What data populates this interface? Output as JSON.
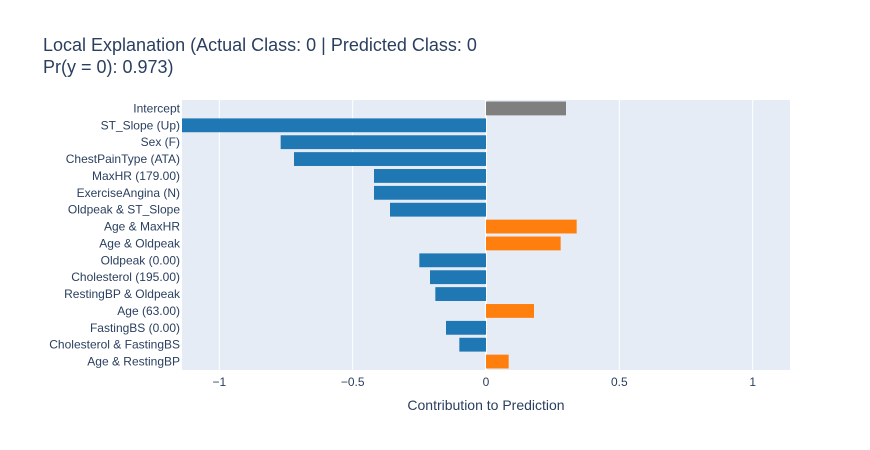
{
  "chart_data": {
    "type": "bar",
    "orientation": "horizontal",
    "title_lines": [
      "Local Explanation (Actual Class: 0 | Predicted Class: 0",
      "Pr(y = 0): 0.973)"
    ],
    "xlabel": "Contribution to Prediction",
    "ylabel": "",
    "xlim": [
      -1.14,
      1.14
    ],
    "x_ticks": [
      -1,
      -0.5,
      0,
      0.5,
      1
    ],
    "x_tick_labels": [
      "−1",
      "−0.5",
      "0",
      "0.5",
      "1"
    ],
    "grid": true,
    "legend": "none",
    "categories": [
      "Intercept",
      "ST_Slope (Up)",
      "Sex (F)",
      "ChestPainType (ATA)",
      "MaxHR (179.00)",
      "ExerciseAngina (N)",
      "Oldpeak & ST_Slope",
      "Age & MaxHR",
      "Age & Oldpeak",
      "Oldpeak (0.00)",
      "Cholesterol (195.00)",
      "RestingBP & Oldpeak",
      "Age (63.00)",
      "FastingBS (0.00)",
      "Cholesterol & FastingBS",
      "Age & RestingBP"
    ],
    "values": [
      0.3,
      -1.14,
      -0.77,
      -0.72,
      -0.42,
      -0.42,
      -0.36,
      0.34,
      0.28,
      -0.25,
      -0.21,
      -0.19,
      0.18,
      -0.15,
      -0.1,
      0.085
    ],
    "colors": {
      "intercept": "#7f7f7f",
      "positive": "#ff7f0e",
      "negative": "#1f77b4",
      "plot_background": "#e5ecf6",
      "gridline": "#ffffff",
      "text": "#2a3f5f"
    }
  }
}
